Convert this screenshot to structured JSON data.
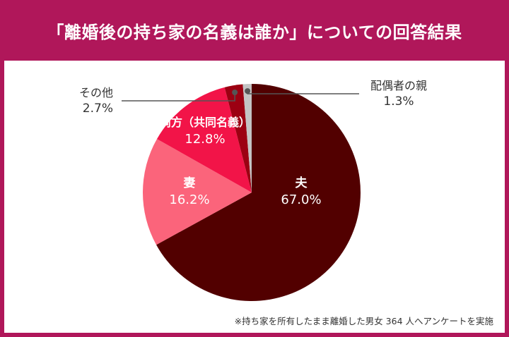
{
  "title": "「離婚後の持ち家の名義は誰か」についての回答結果",
  "footnote": "※持ち家を所有したまま離婚した男女 364 人へアンケートを実施",
  "chart_data": {
    "type": "pie",
    "title": "「離婚後の持ち家の名義は誰か」についての回答結果",
    "slices": [
      {
        "name": "夫",
        "value": 67.0,
        "value_label": "67.0%",
        "color": "#520000"
      },
      {
        "name": "妻",
        "value": 16.2,
        "value_label": "16.2%",
        "color": "#fb647b"
      },
      {
        "name": "両方（共同名義）",
        "value": 12.8,
        "value_label": "12.8%",
        "color": "#f21448"
      },
      {
        "name": "その他",
        "value": 2.7,
        "value_label": "2.7%",
        "color": "#9c0012"
      },
      {
        "name": "配偶者の親",
        "value": 1.3,
        "value_label": "1.3%",
        "color": "#c4c4c4"
      }
    ],
    "start_angle_deg": 0,
    "direction": "clockwise",
    "legend": "none"
  },
  "colors": {
    "header_bg": "#b0175a",
    "header_text": "#ffffff",
    "inside_label_text": "#ffffff",
    "outside_label_text": "#333333",
    "leader_line": "#555555"
  }
}
